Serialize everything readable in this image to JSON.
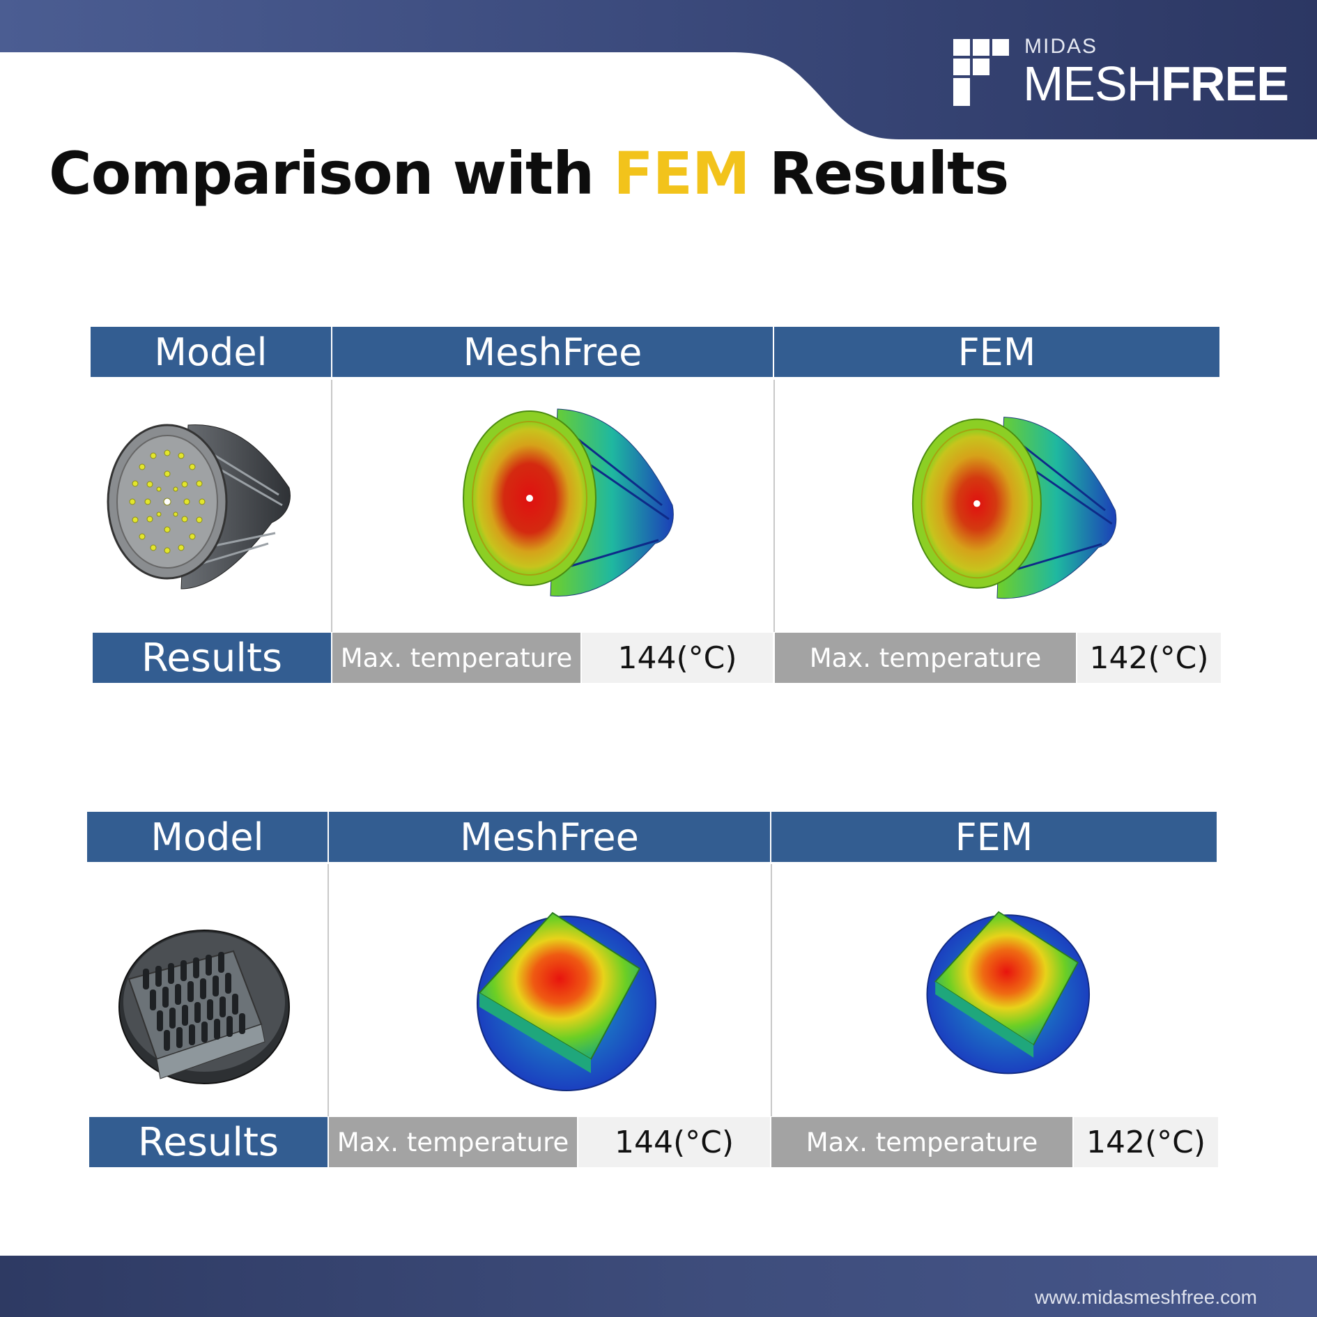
{
  "brand": {
    "small": "MIDAS",
    "big_thin": "MESH",
    "big_bold": "FREE",
    "url": "www.midasmeshfree.com"
  },
  "title": {
    "before": "Comparison with ",
    "accent": "FEM",
    "after": " Results",
    "accent_color": "#f2c31b"
  },
  "colors": {
    "header_blue": "#335d91",
    "metric_gray": "#a3a3a3",
    "value_bg": "#f1f1f1"
  },
  "tables": [
    {
      "headers": {
        "model": "Model",
        "meshfree": "MeshFree",
        "fem": "FEM"
      },
      "results_label": "Results",
      "meshfree": {
        "metric": "Max. temperature",
        "value": "144(°C)"
      },
      "fem": {
        "metric": "Max. temperature",
        "value": "142(°C)"
      },
      "model_image": "led-heat-sink-radial-fins",
      "meshfree_image": "radial-heat-sink-temperature-contour",
      "fem_image": "radial-heat-sink-temperature-contour"
    },
    {
      "headers": {
        "model": "Model",
        "meshfree": "MeshFree",
        "fem": "FEM"
      },
      "results_label": "Results",
      "meshfree": {
        "metric": "Max. temperature",
        "value": "144(°C)"
      },
      "fem": {
        "metric": "Max. temperature",
        "value": "142(°C)"
      },
      "model_image": "pin-fin-heat-sink",
      "meshfree_image": "pin-fin-heat-sink-temperature-contour",
      "fem_image": "pin-fin-heat-sink-temperature-contour"
    }
  ]
}
